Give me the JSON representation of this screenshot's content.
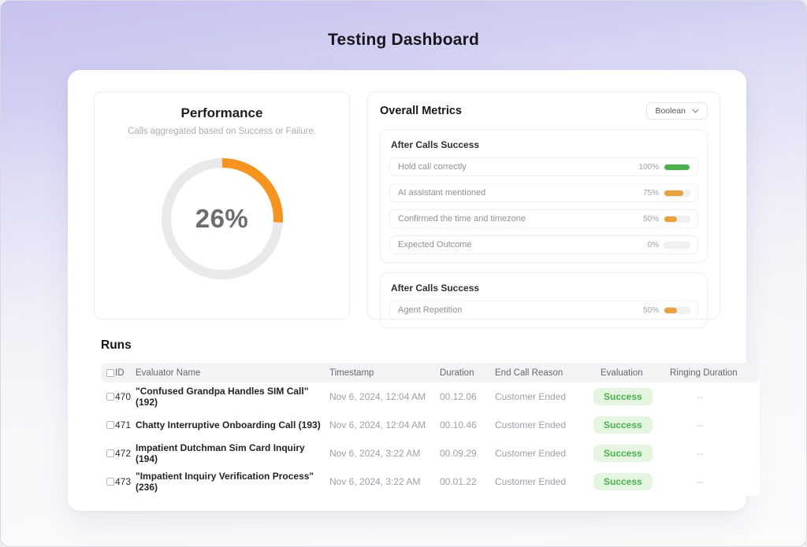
{
  "page": {
    "title": "Testing Dashboard"
  },
  "performance": {
    "title": "Performance",
    "subtitle": "Calls aggregated based on Success or Failure.",
    "percent": 26,
    "percent_label": "26%",
    "arc_color": "#F7941E",
    "track_color": "#E9E9EB"
  },
  "overall_metrics": {
    "title": "Overall Metrics",
    "filter_label": "Boolean",
    "sections": [
      {
        "heading": "After Calls Success",
        "metrics": [
          {
            "label": "Hold call correctly",
            "percent": 100,
            "percent_label": "100%",
            "color": "#4CAF50"
          },
          {
            "label": "AI assistant mentioned",
            "percent": 75,
            "percent_label": "75%",
            "color": "#E9A23B"
          },
          {
            "label": "Confirmed the time and timezone",
            "percent": 50,
            "percent_label": "50%",
            "color": "#E9A23B"
          },
          {
            "label": "Expected Outcome",
            "percent": 0,
            "percent_label": "0%",
            "color": "#E9A23B"
          }
        ]
      },
      {
        "heading": "After Calls Success",
        "metrics": [
          {
            "label": "Agent Repetition",
            "percent": 50,
            "percent_label": "50%",
            "color": "#E9A23B"
          }
        ]
      }
    ]
  },
  "runs": {
    "title": "Runs",
    "columns": {
      "id": "ID",
      "name": "Evaluator Name",
      "timestamp": "Timestamp",
      "duration": "Duration",
      "end_reason": "End Call Reason",
      "evaluation": "Evaluation",
      "ringing": "Ringing Duration"
    },
    "badge": {
      "bg": "#E4F6E0",
      "text_color": "#4CAF50"
    },
    "rows": [
      {
        "id": "470",
        "name": "\"Confused Grandpa Handles SIM Call\" (192)",
        "timestamp": "Nov 6, 2024, 12:04 AM",
        "duration": "00.12.06",
        "end_reason": "Customer Ended",
        "evaluation": "Success",
        "ringing": "--"
      },
      {
        "id": "471",
        "name": "Chatty Interruptive Onboarding Call (193)",
        "timestamp": "Nov 6, 2024, 12:04 AM",
        "duration": "00.10.46",
        "end_reason": "Customer Ended",
        "evaluation": "Success",
        "ringing": "--"
      },
      {
        "id": "472",
        "name": "Impatient Dutchman Sim Card Inquiry (194)",
        "timestamp": "Nov 6, 2024, 3:22 AM",
        "duration": "00.09.29",
        "end_reason": "Customer Ended",
        "evaluation": "Success",
        "ringing": "--"
      },
      {
        "id": "473",
        "name": "\"Impatient Inquiry Verification Process\" (236)",
        "timestamp": "Nov 6, 2024, 3:22 AM",
        "duration": "00.01.22",
        "end_reason": "Customer Ended",
        "evaluation": "Success",
        "ringing": "--"
      }
    ]
  }
}
